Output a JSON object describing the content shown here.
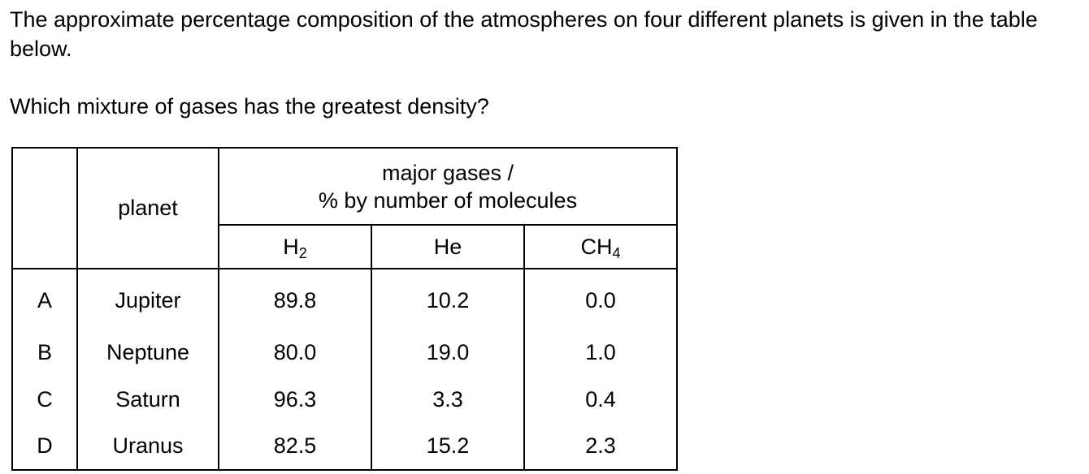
{
  "intro_text": "The approximate percentage composition of the atmospheres on four different planets is given in the table below.",
  "question_text": "Which mixture of gases has the greatest density?",
  "table": {
    "planet_header": "planet",
    "group_header_line1": "major gases /",
    "group_header_line2": "% by number of molecules",
    "gas_columns": [
      {
        "base": "H",
        "sub": "2"
      },
      {
        "base": "He",
        "sub": ""
      },
      {
        "base": "CH",
        "sub": "4"
      }
    ],
    "rows": [
      {
        "letter": "A",
        "planet": "Jupiter",
        "values": [
          "89.8",
          "10.2",
          "0.0"
        ]
      },
      {
        "letter": "B",
        "planet": "Neptune",
        "values": [
          "80.0",
          "19.0",
          "1.0"
        ]
      },
      {
        "letter": "C",
        "planet": "Saturn",
        "values": [
          "96.3",
          "3.3",
          "0.4"
        ]
      },
      {
        "letter": "D",
        "planet": "Uranus",
        "values": [
          "82.5",
          "15.2",
          "2.3"
        ]
      }
    ]
  }
}
